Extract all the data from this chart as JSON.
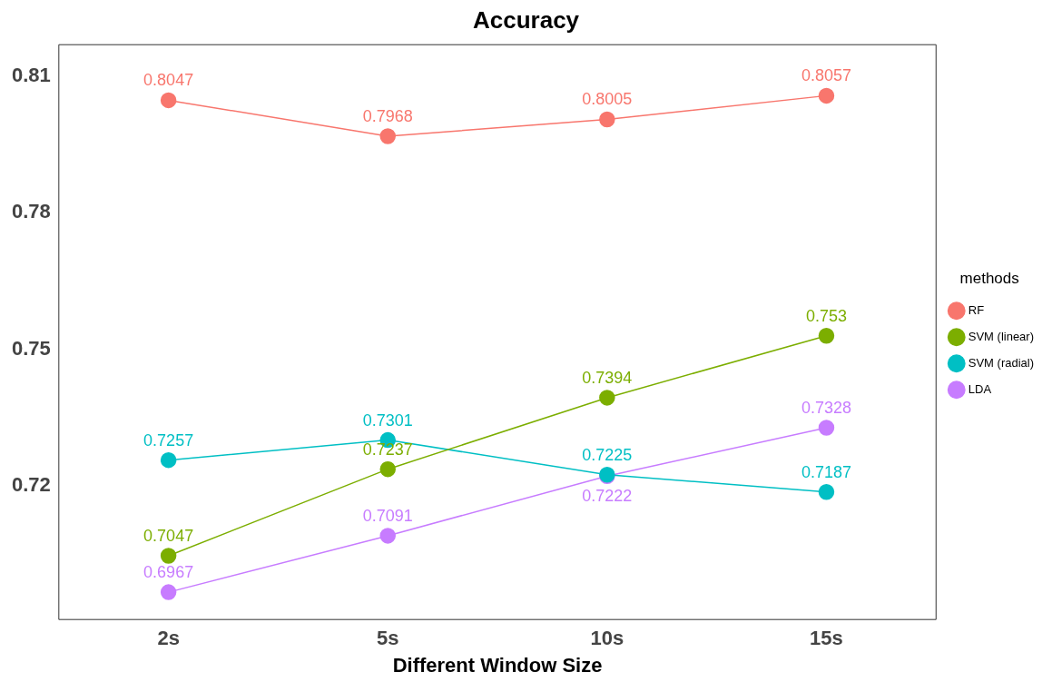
{
  "chart_data": {
    "type": "line",
    "title": "Accuracy",
    "xlabel": "Different Window Size",
    "legend_title": "methods",
    "categories": [
      "2s",
      "5s",
      "10s",
      "15s"
    ],
    "series": [
      {
        "name": "RF",
        "color": "#f8766d",
        "values": [
          0.8047,
          0.7968,
          0.8005,
          0.8057
        ]
      },
      {
        "name": "SVM (linear)",
        "color": "#7cae00",
        "values": [
          0.7047,
          0.7237,
          0.7394,
          0.753
        ]
      },
      {
        "name": "SVM (radial)",
        "color": "#00bfc4",
        "values": [
          0.7257,
          0.7301,
          0.7225,
          0.7187
        ]
      },
      {
        "name": "LDA",
        "color": "#c77cff",
        "values": [
          0.6967,
          0.7091,
          0.7222,
          0.7328
        ]
      }
    ],
    "ylim": [
      0.6907,
      0.8169
    ],
    "yticks": [
      0.72,
      0.75,
      0.78,
      0.81
    ],
    "grid": false,
    "legend": "right",
    "marker": "circle",
    "line_style": "solid",
    "data_labels": true
  }
}
